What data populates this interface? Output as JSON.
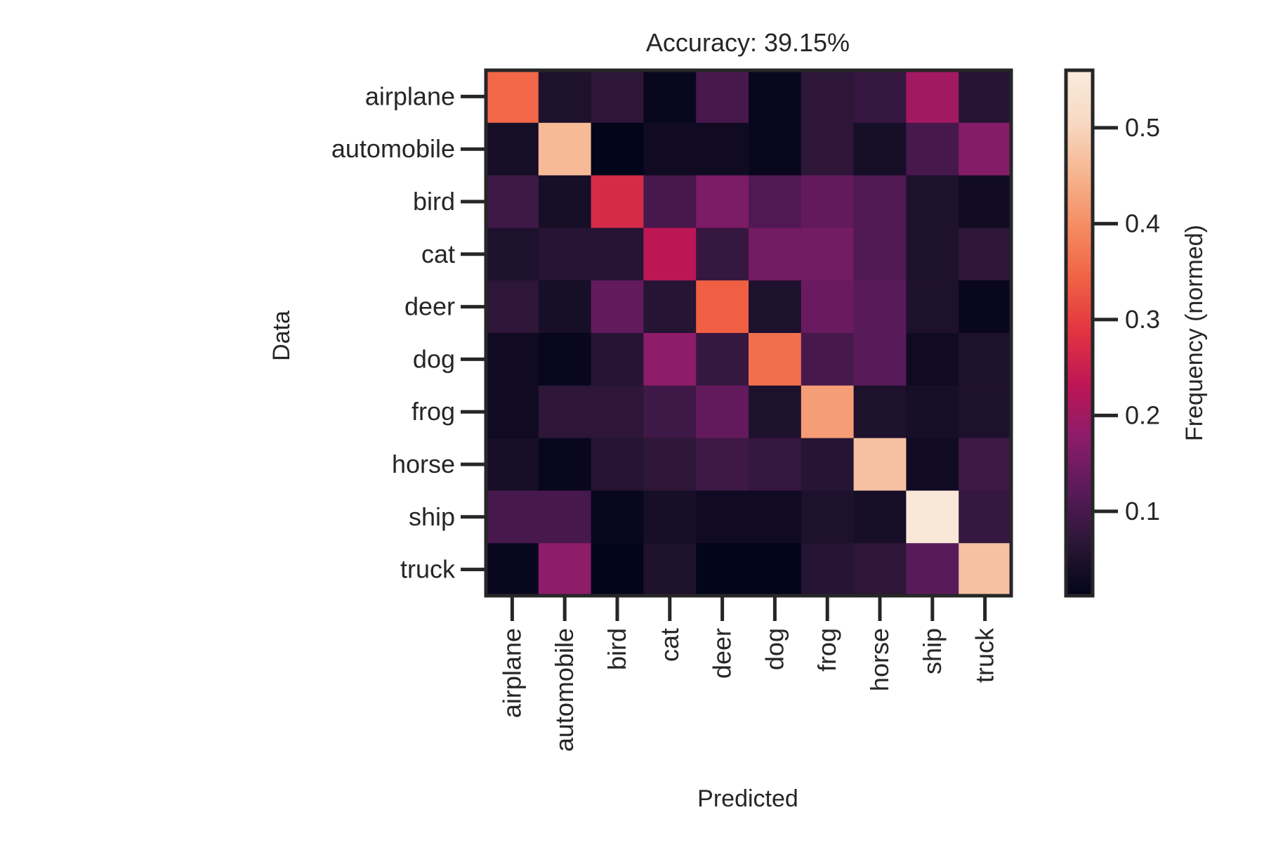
{
  "chart_data": {
    "type": "heatmap",
    "title": "Accuracy: 39.15%",
    "xlabel": "Predicted",
    "ylabel": "Data",
    "x_categories": [
      "airplane",
      "automobile",
      "bird",
      "cat",
      "deer",
      "dog",
      "frog",
      "horse",
      "ship",
      "truck"
    ],
    "y_categories": [
      "airplane",
      "automobile",
      "bird",
      "cat",
      "deer",
      "dog",
      "frog",
      "horse",
      "ship",
      "truck"
    ],
    "values": [
      [
        0.35,
        0.05,
        0.07,
        0.02,
        0.1,
        0.02,
        0.07,
        0.08,
        0.2,
        0.06
      ],
      [
        0.04,
        0.46,
        0.01,
        0.03,
        0.03,
        0.02,
        0.07,
        0.04,
        0.1,
        0.17
      ],
      [
        0.09,
        0.04,
        0.27,
        0.1,
        0.16,
        0.11,
        0.13,
        0.11,
        0.05,
        0.03
      ],
      [
        0.05,
        0.06,
        0.06,
        0.23,
        0.08,
        0.15,
        0.15,
        0.11,
        0.05,
        0.07
      ],
      [
        0.07,
        0.04,
        0.13,
        0.06,
        0.34,
        0.05,
        0.14,
        0.12,
        0.05,
        0.02
      ],
      [
        0.03,
        0.02,
        0.06,
        0.18,
        0.08,
        0.36,
        0.1,
        0.12,
        0.03,
        0.05
      ],
      [
        0.03,
        0.07,
        0.07,
        0.09,
        0.13,
        0.05,
        0.42,
        0.05,
        0.04,
        0.05
      ],
      [
        0.04,
        0.02,
        0.06,
        0.07,
        0.09,
        0.08,
        0.06,
        0.47,
        0.03,
        0.09
      ],
      [
        0.1,
        0.1,
        0.02,
        0.04,
        0.03,
        0.03,
        0.05,
        0.04,
        0.55,
        0.08
      ],
      [
        0.02,
        0.18,
        0.01,
        0.05,
        0.01,
        0.01,
        0.06,
        0.07,
        0.12,
        0.47
      ]
    ],
    "colorbar": {
      "label": "Frequency (normed)",
      "min": 0.012,
      "max": 0.56,
      "ticks": [
        "0.1",
        "0.2",
        "0.3",
        "0.4",
        "0.5"
      ],
      "colormap": "rocket",
      "colormap_stops": [
        "#03051a",
        "#2a1636",
        "#5a1a5b",
        "#8b1c6a",
        "#bd1655",
        "#e13342",
        "#f06043",
        "#f58b62",
        "#f6b48e",
        "#f7d9c2",
        "#faebdd"
      ]
    },
    "frame_color": "#262626"
  }
}
